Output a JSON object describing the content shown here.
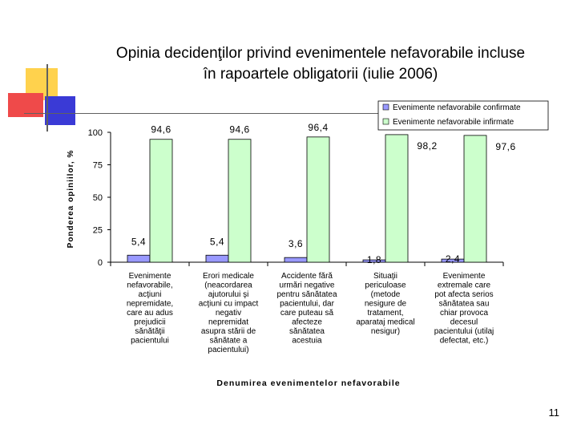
{
  "slide": {
    "title_line1": "Opinia decidenţilor privind evenimentele nefavorabile  incluse",
    "title_line2": "în rapoartele obligatorii (iulie 2006)",
    "page_number": "11",
    "decor_colors": {
      "yellow": "#ffd24d",
      "red": "#ef4a4a",
      "blue": "#3a3ad6",
      "line": "#606060"
    }
  },
  "chart_data": {
    "type": "bar",
    "title": "",
    "xlabel": "Denumirea evenimentelor nefavorabile",
    "ylabel": "Ponderea opiniilor, %",
    "ylim": [
      0,
      100
    ],
    "yticks": [
      "0",
      "25",
      "50",
      "75",
      "100"
    ],
    "categories": [
      [
        "Evenimente",
        "nefavorabile,",
        "acţiuni",
        "nepremidate,",
        "care au adus",
        "prejudicii",
        "sănătăţii",
        "pacientului"
      ],
      [
        "Erori medicale",
        "(neacordarea",
        "ajutorului şi",
        "acţiuni cu impact",
        "negativ",
        "nepremidat",
        "asupra stării de",
        "sănătate a",
        "pacientului)"
      ],
      [
        "Accidente fără",
        "urmări negative",
        "pentru sănătatea",
        "pacientului, dar",
        "care puteau să",
        "afecteze",
        "sănătatea",
        "acestuia"
      ],
      [
        "Situaţii",
        "periculoase",
        "(metode",
        "nesigure de",
        "tratament,",
        "aparataj medical",
        "nesigur)"
      ],
      [
        "Evenimente",
        "extremale care",
        "pot afecta serios",
        "sănătatea sau",
        "chiar provoca",
        "decesul",
        "pacientului (utilaj",
        "defectat, etc.)"
      ]
    ],
    "series": [
      {
        "name": "Evenimente nefavorabile confirmate",
        "color": "#9999ff",
        "values": [
          5.4,
          5.4,
          3.6,
          1.8,
          2.4
        ],
        "labels": [
          "5,4",
          "5,4",
          "3,6",
          "1,8",
          "2,4"
        ]
      },
      {
        "name": "Evenimente nefavorabile infirmate",
        "color": "#ccffcc",
        "values": [
          94.6,
          94.6,
          96.4,
          98.2,
          97.6
        ],
        "labels": [
          "94,6",
          "94,6",
          "96,4",
          "98,2",
          "97,6"
        ]
      }
    ],
    "legend_position": "top-right",
    "grid": false
  }
}
